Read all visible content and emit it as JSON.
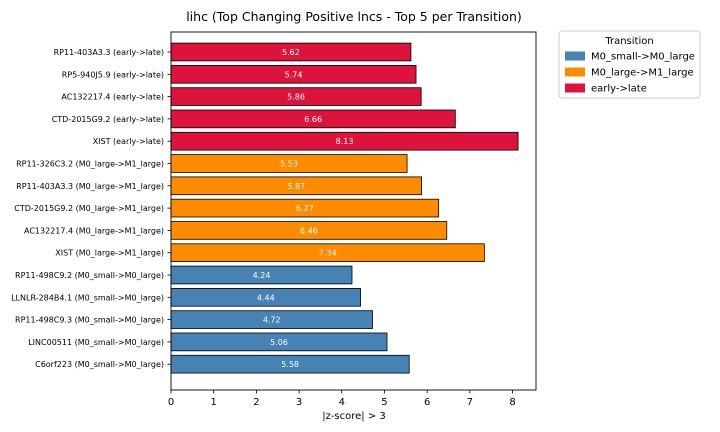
{
  "chart_data": {
    "type": "bar",
    "orientation": "horizontal",
    "title": "lihc (Top Changing Positive lncs - Top 5 per Transition)",
    "xlabel": "|z-score| > 3",
    "ylabel": "",
    "xlim": [
      0,
      8.55
    ],
    "xticks": [
      0,
      1,
      2,
      3,
      4,
      5,
      6,
      7,
      8
    ],
    "grid": false,
    "legend": {
      "title": "Transition",
      "placement": "outside-top-right",
      "entries": [
        {
          "name": "M0_small->M0_large",
          "color": "#4682b4"
        },
        {
          "name": "M0_large->M1_large",
          "color": "#ff8c00"
        },
        {
          "name": "early->late",
          "color": "#dc143c"
        }
      ]
    },
    "bars": [
      {
        "label": "RP11-403A3.3 (early->late)",
        "value": 5.62,
        "value_label": "5.62",
        "group": "early->late"
      },
      {
        "label": "RP5-940J5.9 (early->late)",
        "value": 5.74,
        "value_label": "5.74",
        "group": "early->late"
      },
      {
        "label": "AC132217.4 (early->late)",
        "value": 5.86,
        "value_label": "5.86",
        "group": "early->late"
      },
      {
        "label": "CTD-2015G9.2 (early->late)",
        "value": 6.66,
        "value_label": "6.66",
        "group": "early->late"
      },
      {
        "label": "XIST (early->late)",
        "value": 8.13,
        "value_label": "8.13",
        "group": "early->late"
      },
      {
        "label": "RP11-326C3.2 (M0_large->M1_large)",
        "value": 5.53,
        "value_label": "5.53",
        "group": "M0_large->M1_large"
      },
      {
        "label": "RP11-403A3.3 (M0_large->M1_large)",
        "value": 5.87,
        "value_label": "5.87",
        "group": "M0_large->M1_large"
      },
      {
        "label": "CTD-2015G9.2 (M0_large->M1_large)",
        "value": 6.27,
        "value_label": "6.27",
        "group": "M0_large->M1_large"
      },
      {
        "label": "AC132217.4 (M0_large->M1_large)",
        "value": 6.46,
        "value_label": "6.46",
        "group": "M0_large->M1_large"
      },
      {
        "label": "XIST (M0_large->M1_large)",
        "value": 7.34,
        "value_label": "7.34",
        "group": "M0_large->M1_large"
      },
      {
        "label": "RP11-498C9.2 (M0_small->M0_large)",
        "value": 4.24,
        "value_label": "4.24",
        "group": "M0_small->M0_large"
      },
      {
        "label": "LLNLR-284B4.1 (M0_small->M0_large)",
        "value": 4.44,
        "value_label": "4.44",
        "group": "M0_small->M0_large"
      },
      {
        "label": "RP11-498C9.3 (M0_small->M0_large)",
        "value": 4.72,
        "value_label": "4.72",
        "group": "M0_small->M0_large"
      },
      {
        "label": "LINC00511 (M0_small->M0_large)",
        "value": 5.06,
        "value_label": "5.06",
        "group": "M0_small->M0_large"
      },
      {
        "label": "C6orf223 (M0_small->M0_large)",
        "value": 5.58,
        "value_label": "5.58",
        "group": "M0_small->M0_large"
      }
    ]
  }
}
